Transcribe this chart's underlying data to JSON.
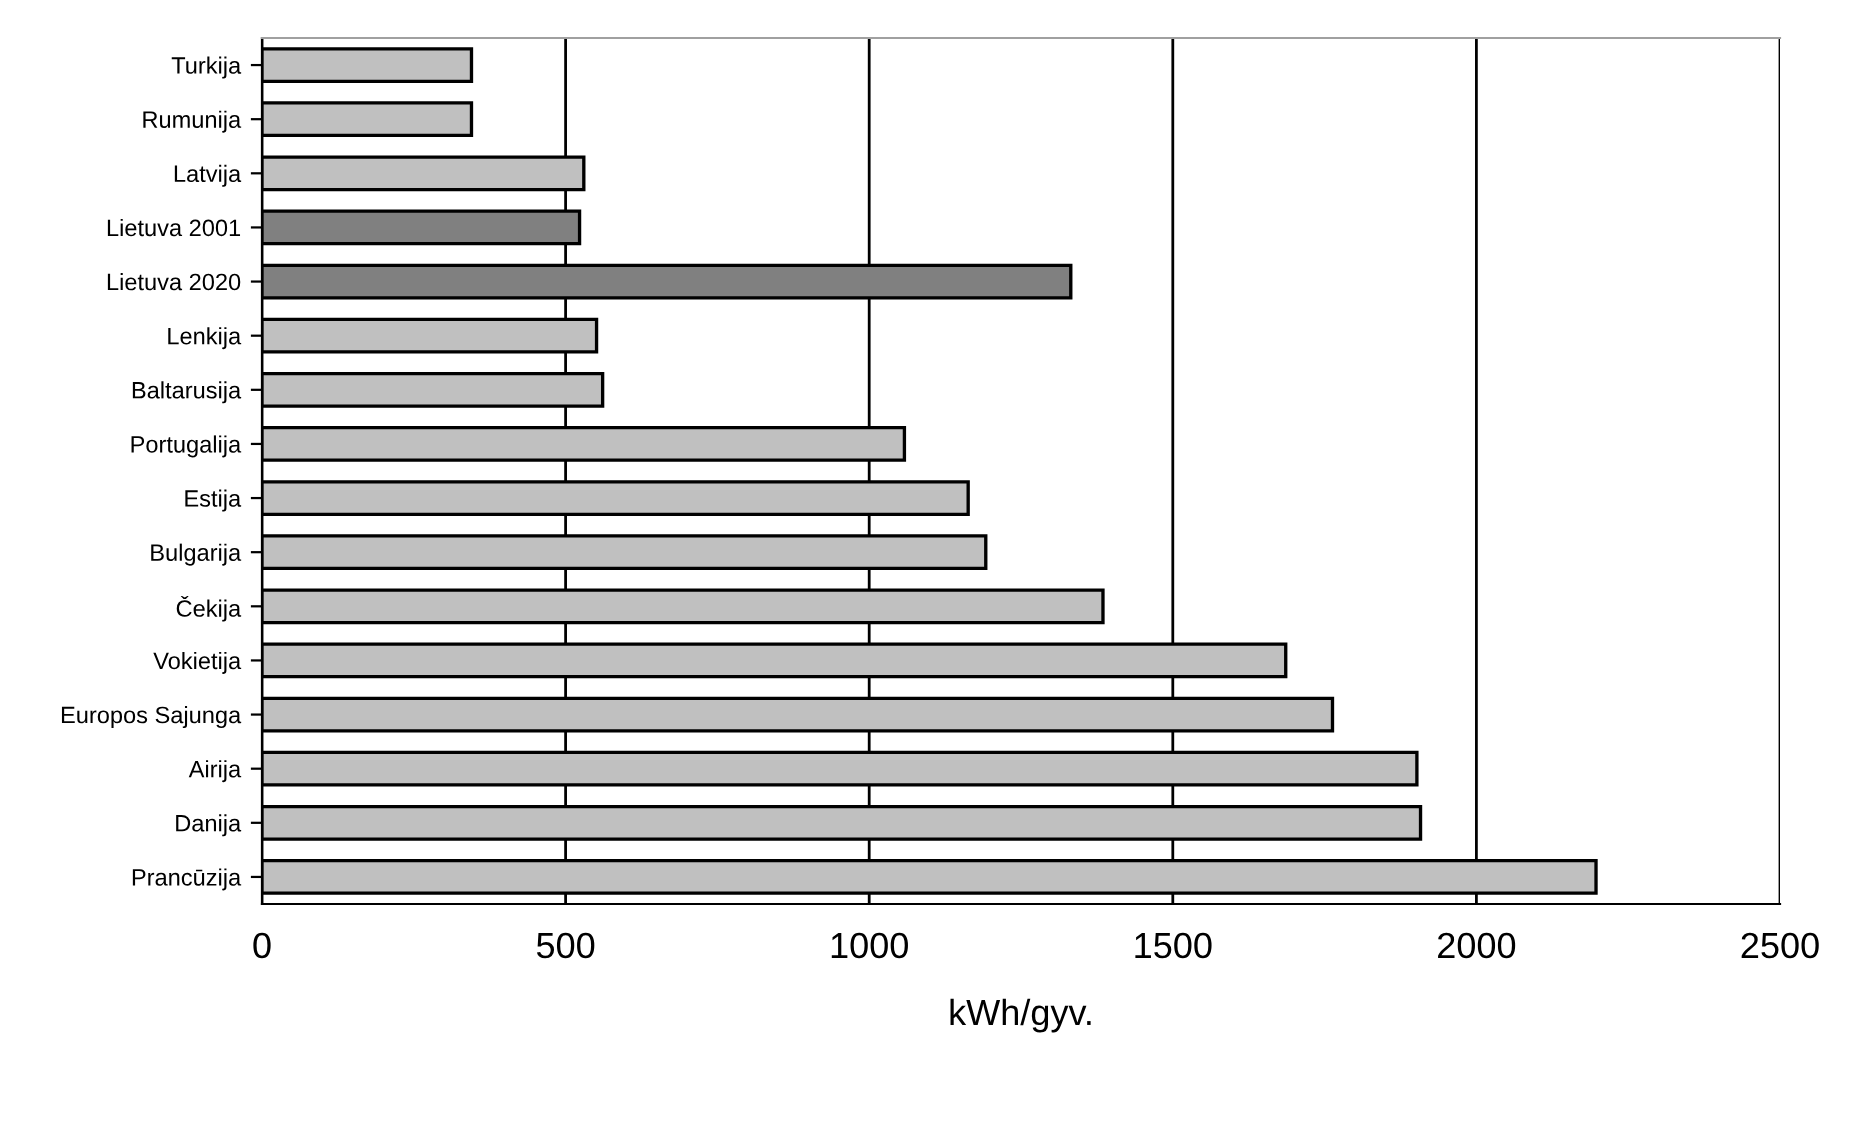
{
  "chart_data": {
    "type": "bar",
    "orientation": "horizontal",
    "xlabel": "kWh/gyv.",
    "categories": [
      "Turkija",
      "Rumunija",
      "Latvija",
      "Lietuva 2001",
      "Lietuva 2020",
      "Lenkija",
      "Baltarusija",
      "Portugalija",
      "Estija",
      "Bulgarija",
      "Čekija",
      "Vokietija",
      "Europos Sajunga",
      "Airija",
      "Danija",
      "Prancūzija"
    ],
    "values": [
      345,
      345,
      530,
      523,
      1332,
      551,
      561,
      1058,
      1163,
      1192,
      1385,
      1686,
      1763,
      1902,
      1908,
      2197
    ],
    "colors": [
      "#c0c0c0",
      "#c0c0c0",
      "#c0c0c0",
      "#808080",
      "#808080",
      "#c0c0c0",
      "#c0c0c0",
      "#c0c0c0",
      "#c0c0c0",
      "#c0c0c0",
      "#c0c0c0",
      "#c0c0c0",
      "#c0c0c0",
      "#c0c0c0",
      "#c0c0c0",
      "#c0c0c0"
    ],
    "xlim": [
      0,
      2500
    ],
    "xticks": [
      0,
      500,
      1000,
      1500,
      2000,
      2500
    ],
    "grid": "x"
  }
}
